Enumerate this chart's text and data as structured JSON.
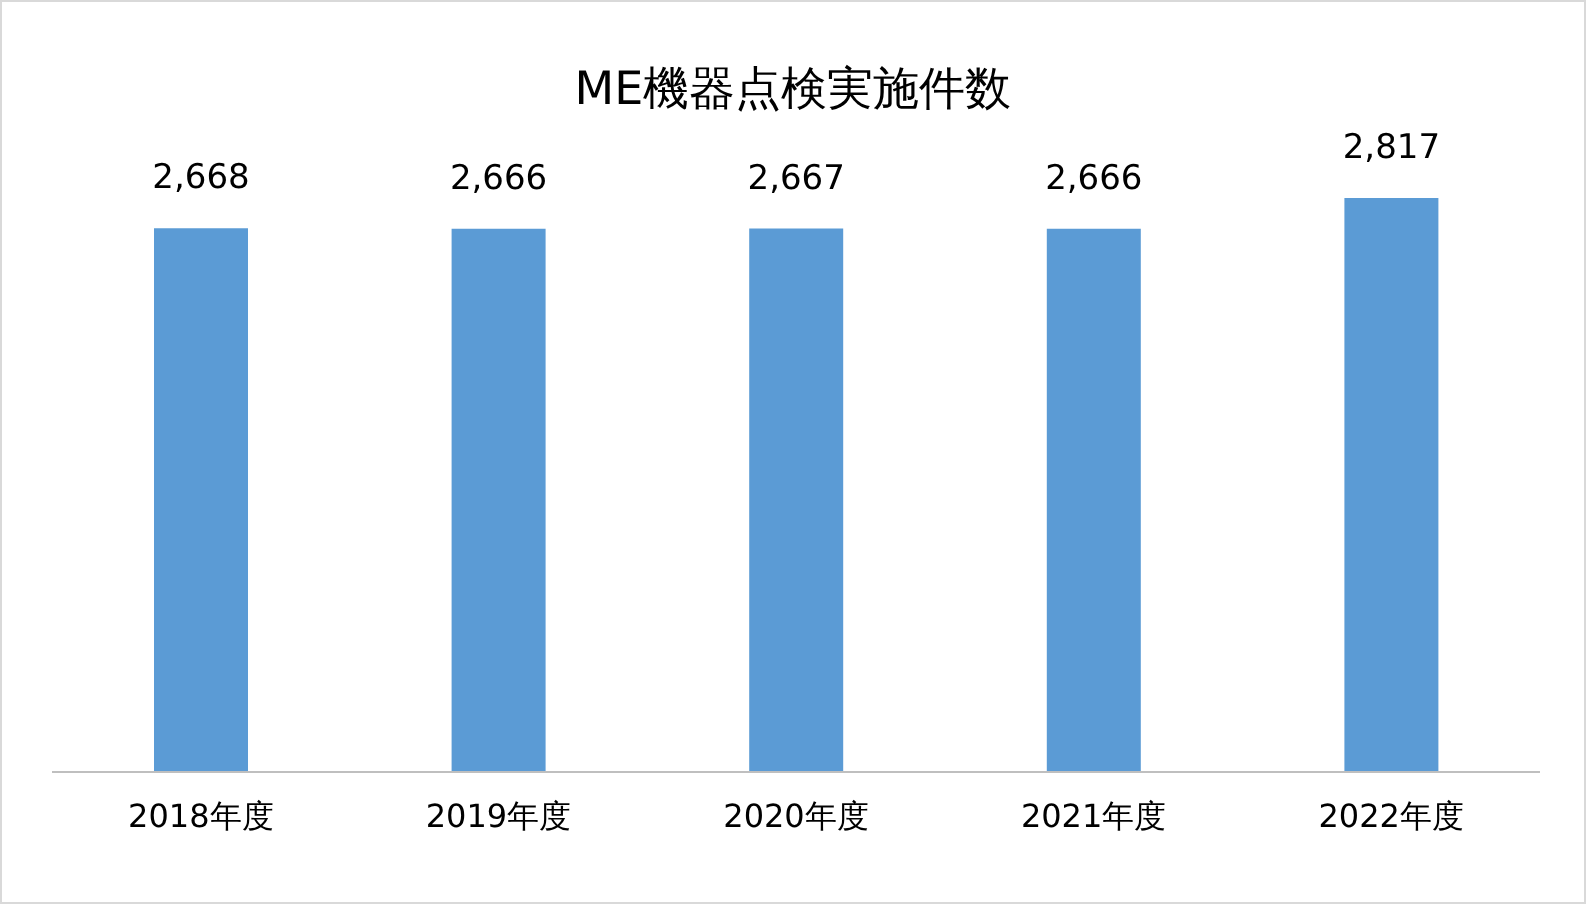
{
  "chart_data": {
    "type": "bar",
    "title": "ME機器点検実施件数",
    "categories": [
      "2018年度",
      "2019年度",
      "2020年度",
      "2021年度",
      "2022年度"
    ],
    "values": [
      2668,
      2666,
      2667,
      2666,
      2817
    ],
    "color": "#5b9bd5",
    "value_labels": [
      "2,668",
      "2,666",
      "2,667",
      "2,666",
      "2,817"
    ],
    "tick_labels": "x"
  }
}
